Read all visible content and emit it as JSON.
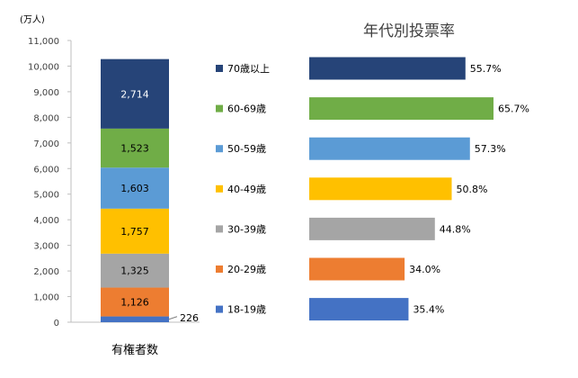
{
  "chart_data": [
    {
      "type": "bar",
      "stacked": true,
      "y_unit_label": "(万人)",
      "xlabel": "有権者数",
      "ylim": [
        0,
        11000
      ],
      "yticks": [
        "0",
        "1,000",
        "2,000",
        "3,000",
        "4,000",
        "5,000",
        "6,000",
        "7,000",
        "8,000",
        "9,000",
        "10,000",
        "11,000"
      ],
      "grid": false,
      "segments": [
        {
          "age_group": "18-19歳",
          "value": 226,
          "label": "226",
          "color": "#4472c4"
        },
        {
          "age_group": "20-29歳",
          "value": 1126,
          "label": "1,126",
          "color": "#ed7d31"
        },
        {
          "age_group": "30-39歳",
          "value": 1325,
          "label": "1,325",
          "color": "#a5a5a5"
        },
        {
          "age_group": "40-49歳",
          "value": 1757,
          "label": "1,757",
          "color": "#ffc000"
        },
        {
          "age_group": "50-59歳",
          "value": 1603,
          "label": "1,603",
          "color": "#5b9bd5"
        },
        {
          "age_group": "60-69歳",
          "value": 1523,
          "label": "1,523",
          "color": "#70ad47"
        },
        {
          "age_group": "70歳以上",
          "value": 2714,
          "label": "2,714",
          "color": "#264478"
        }
      ]
    },
    {
      "type": "bar",
      "orientation": "horizontal",
      "title": "年代別投票率",
      "unit": "%",
      "xlim": [
        0,
        70
      ],
      "axes_visible": false,
      "bars": [
        {
          "age_group": "70歳以上",
          "value": 55.7,
          "label": "55.7%",
          "color": "#264478"
        },
        {
          "age_group": "60-69歳",
          "value": 65.7,
          "label": "65.7%",
          "color": "#70ad47"
        },
        {
          "age_group": "50-59歳",
          "value": 57.3,
          "label": "57.3%",
          "color": "#5b9bd5"
        },
        {
          "age_group": "40-49歳",
          "value": 50.8,
          "label": "50.8%",
          "color": "#ffc000"
        },
        {
          "age_group": "30-39歳",
          "value": 44.8,
          "label": "44.8%",
          "color": "#a5a5a5"
        },
        {
          "age_group": "20-29歳",
          "value": 34.0,
          "label": "34.0%",
          "color": "#ed7d31"
        },
        {
          "age_group": "18-19歳",
          "value": 35.4,
          "label": "35.4%",
          "color": "#4472c4"
        }
      ]
    }
  ]
}
